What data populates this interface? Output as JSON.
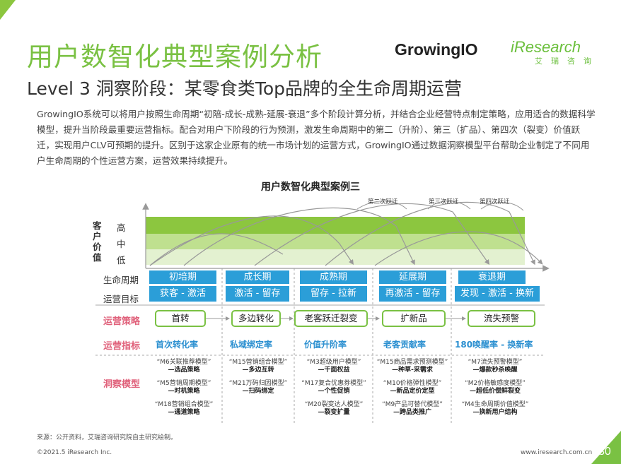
{
  "header": {
    "title": "用户数智化典型案例分析",
    "subtitle": "Level 3 洞察阶段：某零食类Top品牌的全生命周期运营",
    "logos": {
      "growingio": "GrowingIO",
      "iresearch": "iResearch",
      "iresearch_cn": "艾瑞咨询"
    }
  },
  "intro": "GrowingIO系统可以将用户按照生命周期“初陪-成长-成熟-延展-衰退”多个阶段计算分析，并结合企业经营特点制定策略，应用适合的数据科学模型，提升当阶段最重要运营指标。配合对用户下阶段的行为预测，激发生命周期中的第二（升阶）、第三（扩品）、第四次（裂变）价值跃迁，实现用户CLV可预期的提升。区别于这家企业原有的统一市场计划的运营方式，GrowingIO通过数据洞察模型平台帮助企业制定了不同用户生命周期的个性运营方案，运营效果持续提升。",
  "diagram": {
    "title": "用户数智化典型案例三",
    "y_axis_label": "客户价值",
    "levels": [
      "高",
      "中",
      "低"
    ],
    "peak_labels": [
      "第二次跃迁",
      "第三次跃迁",
      "第四次跃迁"
    ],
    "row_labels": {
      "lifecycle": "生命周期",
      "goal": "运营目标"
    },
    "category_labels": {
      "strategy": "运营策略",
      "metric": "运营指标",
      "model": "洞察模型"
    },
    "stages": [
      "初培期",
      "成长期",
      "成熟期",
      "延展期",
      "衰退期"
    ],
    "goals": [
      "获客 - 激活",
      "激活 - 留存",
      "留存 - 拉新",
      "再激活 - 留存",
      "发现 - 激活 - 换新"
    ],
    "strategies": [
      "首转",
      "多边转化",
      "老客跃迁裂变",
      "扩新品",
      "流失预警"
    ],
    "metrics": [
      "首次转化率",
      "私域绑定率",
      "价值升阶率",
      "老客贡献率",
      "180唤醒率 - 换新率"
    ],
    "models": [
      [
        {
          "name": "“M6关联推荐模型”",
          "desc": "—选品策略"
        },
        {
          "name": "“M5营销周期模型”",
          "desc": "—时机策略"
        },
        {
          "name": "“M18营销组合模型”",
          "desc": "—通道策略"
        }
      ],
      [
        {
          "name": "“M15营销组合模型”",
          "desc": "—多边互转"
        },
        {
          "name": "“M21万码归因模型”",
          "desc": "—扫码绑定"
        }
      ],
      [
        {
          "name": "“M3超级用户模型”",
          "desc": "—千面权益"
        },
        {
          "name": "“M17复合优惠券模型”",
          "desc": "—个性促销"
        },
        {
          "name": "“M20裂变达人模型”",
          "desc": "—裂变扩量"
        }
      ],
      [
        {
          "name": "“M15商品需求预测模型”",
          "desc": "—种草-采需求"
        },
        {
          "name": "“M10价格弹性模型”",
          "desc": "—新品定价定型"
        },
        {
          "name": "“M9产品可替代模型”",
          "desc": "—跨品类推广"
        }
      ],
      [
        {
          "name": "“M7流失预警模型”",
          "desc": "—爆款秒杀唤醒"
        },
        {
          "name": "“M2价格敏感度模型”",
          "desc": "—超低价偿鲜裂变"
        },
        {
          "name": "“M4生命周期价值模型”",
          "desc": "—换新用户结构"
        }
      ]
    ]
  },
  "footer": {
    "source": "来源：公开资料，艾瑞咨询研究院自主研究绘制。",
    "copyright": "©2021.5 iResearch Inc.",
    "url": "www.iresearch.com.cn",
    "page": "30"
  },
  "colors": {
    "brand_green": "#7ac143",
    "box_blue": "#2b9ed8",
    "label_pink": "#e0607a",
    "metric_blue": "#2a8fd0"
  }
}
